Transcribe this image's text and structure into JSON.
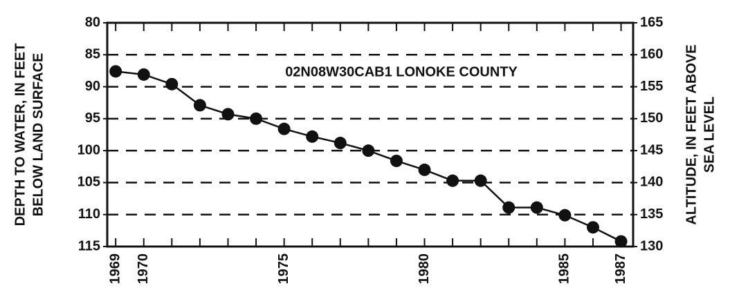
{
  "chart_data": {
    "type": "line",
    "annotation": "02N08W30CAB1 LONOKE COUNTY",
    "y_label": [
      "DEPTH TO WATER, IN FEET",
      "BELOW LAND SURFACE"
    ],
    "y2_label": [
      "ALTITUDE, IN FEET ABOVE",
      "SEA LEVEL"
    ],
    "x": [
      1969,
      1970,
      1971,
      1972,
      1973,
      1974,
      1975,
      1976,
      1977,
      1978,
      1979,
      1980,
      1981,
      1982,
      1983,
      1984,
      1985,
      1986,
      1987
    ],
    "series": [
      {
        "color": "#111111",
        "values": [
          87.6,
          88.1,
          89.6,
          92.9,
          94.3,
          95.0,
          96.6,
          97.8,
          98.8,
          100.0,
          101.6,
          103.0,
          104.7,
          104.7,
          108.9,
          108.9,
          110.1,
          112.0,
          114.2
        ]
      }
    ],
    "xlim": [
      1968.7,
      1987.43
    ],
    "xticks": [
      1969,
      1970,
      1975,
      1980,
      1985,
      1987
    ],
    "x_minor_ticks": [
      1969,
      1970,
      1971,
      1972,
      1973,
      1974,
      1975,
      1976,
      1977,
      1978,
      1979,
      1980,
      1981,
      1982,
      1983,
      1984,
      1985,
      1986,
      1987
    ],
    "ylim": [
      80,
      115
    ],
    "y_inverted": true,
    "yticks": [
      80,
      85,
      90,
      95,
      100,
      105,
      110,
      115
    ],
    "y2lim": [
      130,
      165
    ],
    "y2ticks": [
      130,
      135,
      140,
      145,
      150,
      155,
      160,
      165
    ],
    "grid": true
  }
}
